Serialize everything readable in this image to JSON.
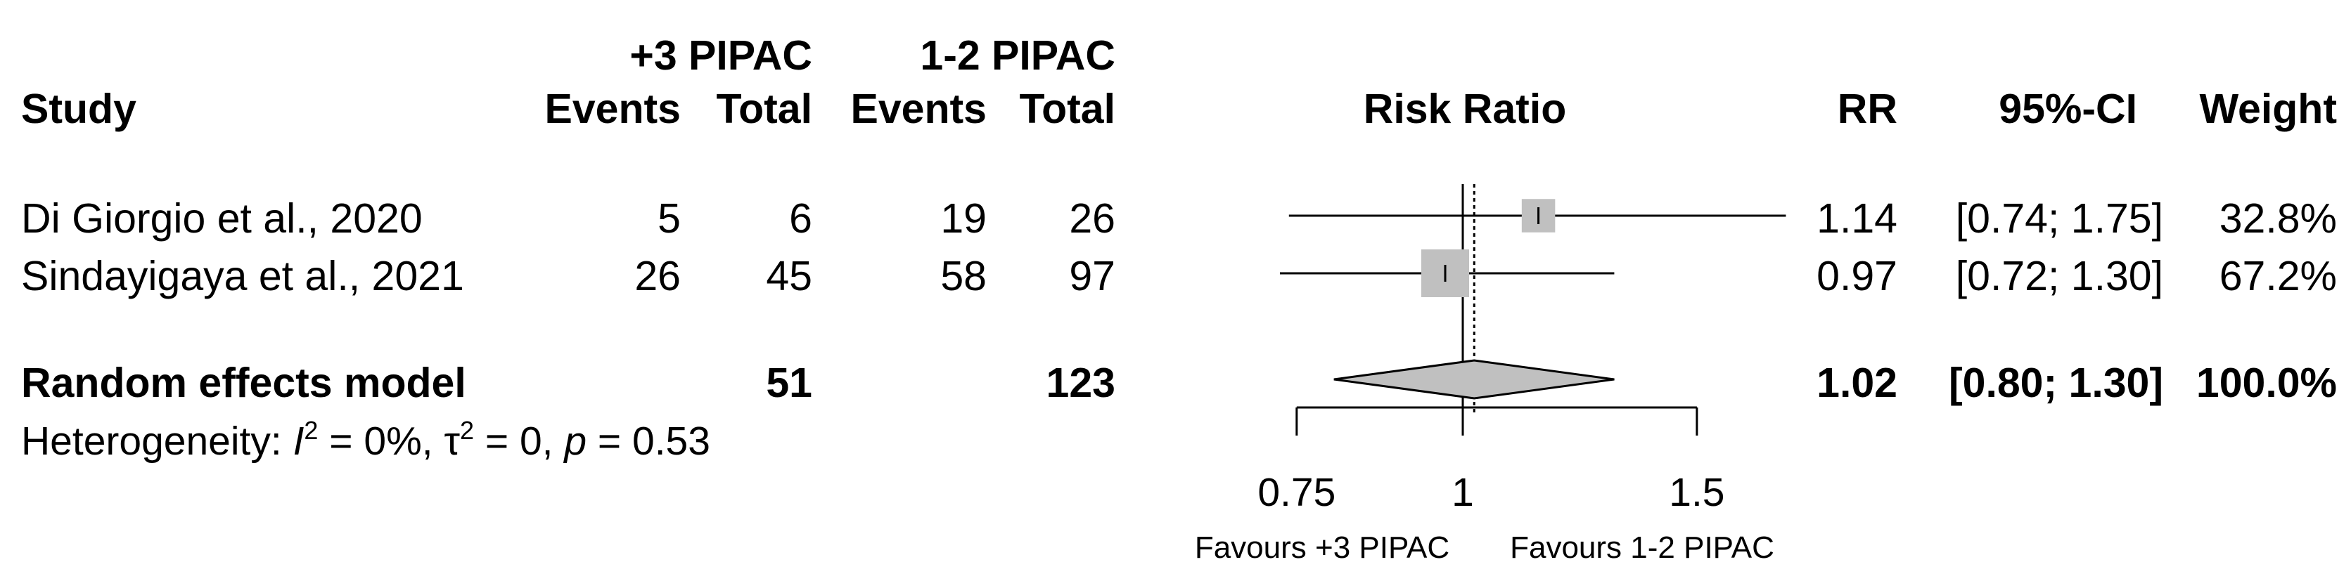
{
  "column_headers": {
    "study": "Study",
    "group_a": "+3 PIPAC",
    "group_b": "1-2 PIPAC",
    "events_a": "Events",
    "total_a": "Total",
    "events_b": "Events",
    "total_b": "Total",
    "plot": "Risk Ratio",
    "rr": "RR",
    "ci": "95%-CI",
    "weight": "Weight"
  },
  "chart_data": {
    "type": "forest",
    "title": "",
    "xlabel": "",
    "measure": "Risk Ratio",
    "scale": "log",
    "xlim": [
      0.75,
      1.5
    ],
    "xticks": [
      0.75,
      1,
      1.5
    ],
    "xtick_labels": [
      "0.75",
      "1",
      "1.5"
    ],
    "null_line": 1,
    "summary_line": 1.02,
    "favours_left": "Favours +3 PIPAC",
    "favours_right": "Favours 1-2 PIPAC",
    "studies": [
      {
        "name": "Di Giorgio et al., 2020",
        "events_a": "5",
        "total_a": "6",
        "events_b": "19",
        "total_b": "26",
        "rr": 1.14,
        "lower": 0.74,
        "upper": 1.75,
        "rr_text": "1.14",
        "ci_text": "[0.74; 1.75]",
        "weight": 32.8,
        "weight_text": "32.8%"
      },
      {
        "name": "Sindayigaya et al., 2021",
        "events_a": "26",
        "total_a": "45",
        "events_b": "58",
        "total_b": "97",
        "rr": 0.97,
        "lower": 0.72,
        "upper": 1.3,
        "rr_text": "0.97",
        "ci_text": "[0.72; 1.30]",
        "weight": 67.2,
        "weight_text": "67.2%"
      }
    ],
    "pooled": {
      "name": "Random effects model",
      "total_a": "51",
      "total_b": "123",
      "rr": 1.02,
      "lower": 0.8,
      "upper": 1.3,
      "rr_text": "1.02",
      "ci_text": "[0.80; 1.30]",
      "weight_text": "100.0%"
    },
    "heterogeneity": {
      "label": "Heterogeneity: ",
      "i2_symbol": "I",
      "i2_exp": "2",
      "i2_value": " = 0%, ",
      "tau_symbol": "τ",
      "tau_exp": "2",
      "tau_value": " = 0, ",
      "p_symbol": "p",
      "p_value": " = 0.53"
    }
  },
  "colors": {
    "box_fill": "#c0c0c0",
    "diamond_fill": "#c0c0c0",
    "line": "#000000",
    "text": "#000000"
  }
}
